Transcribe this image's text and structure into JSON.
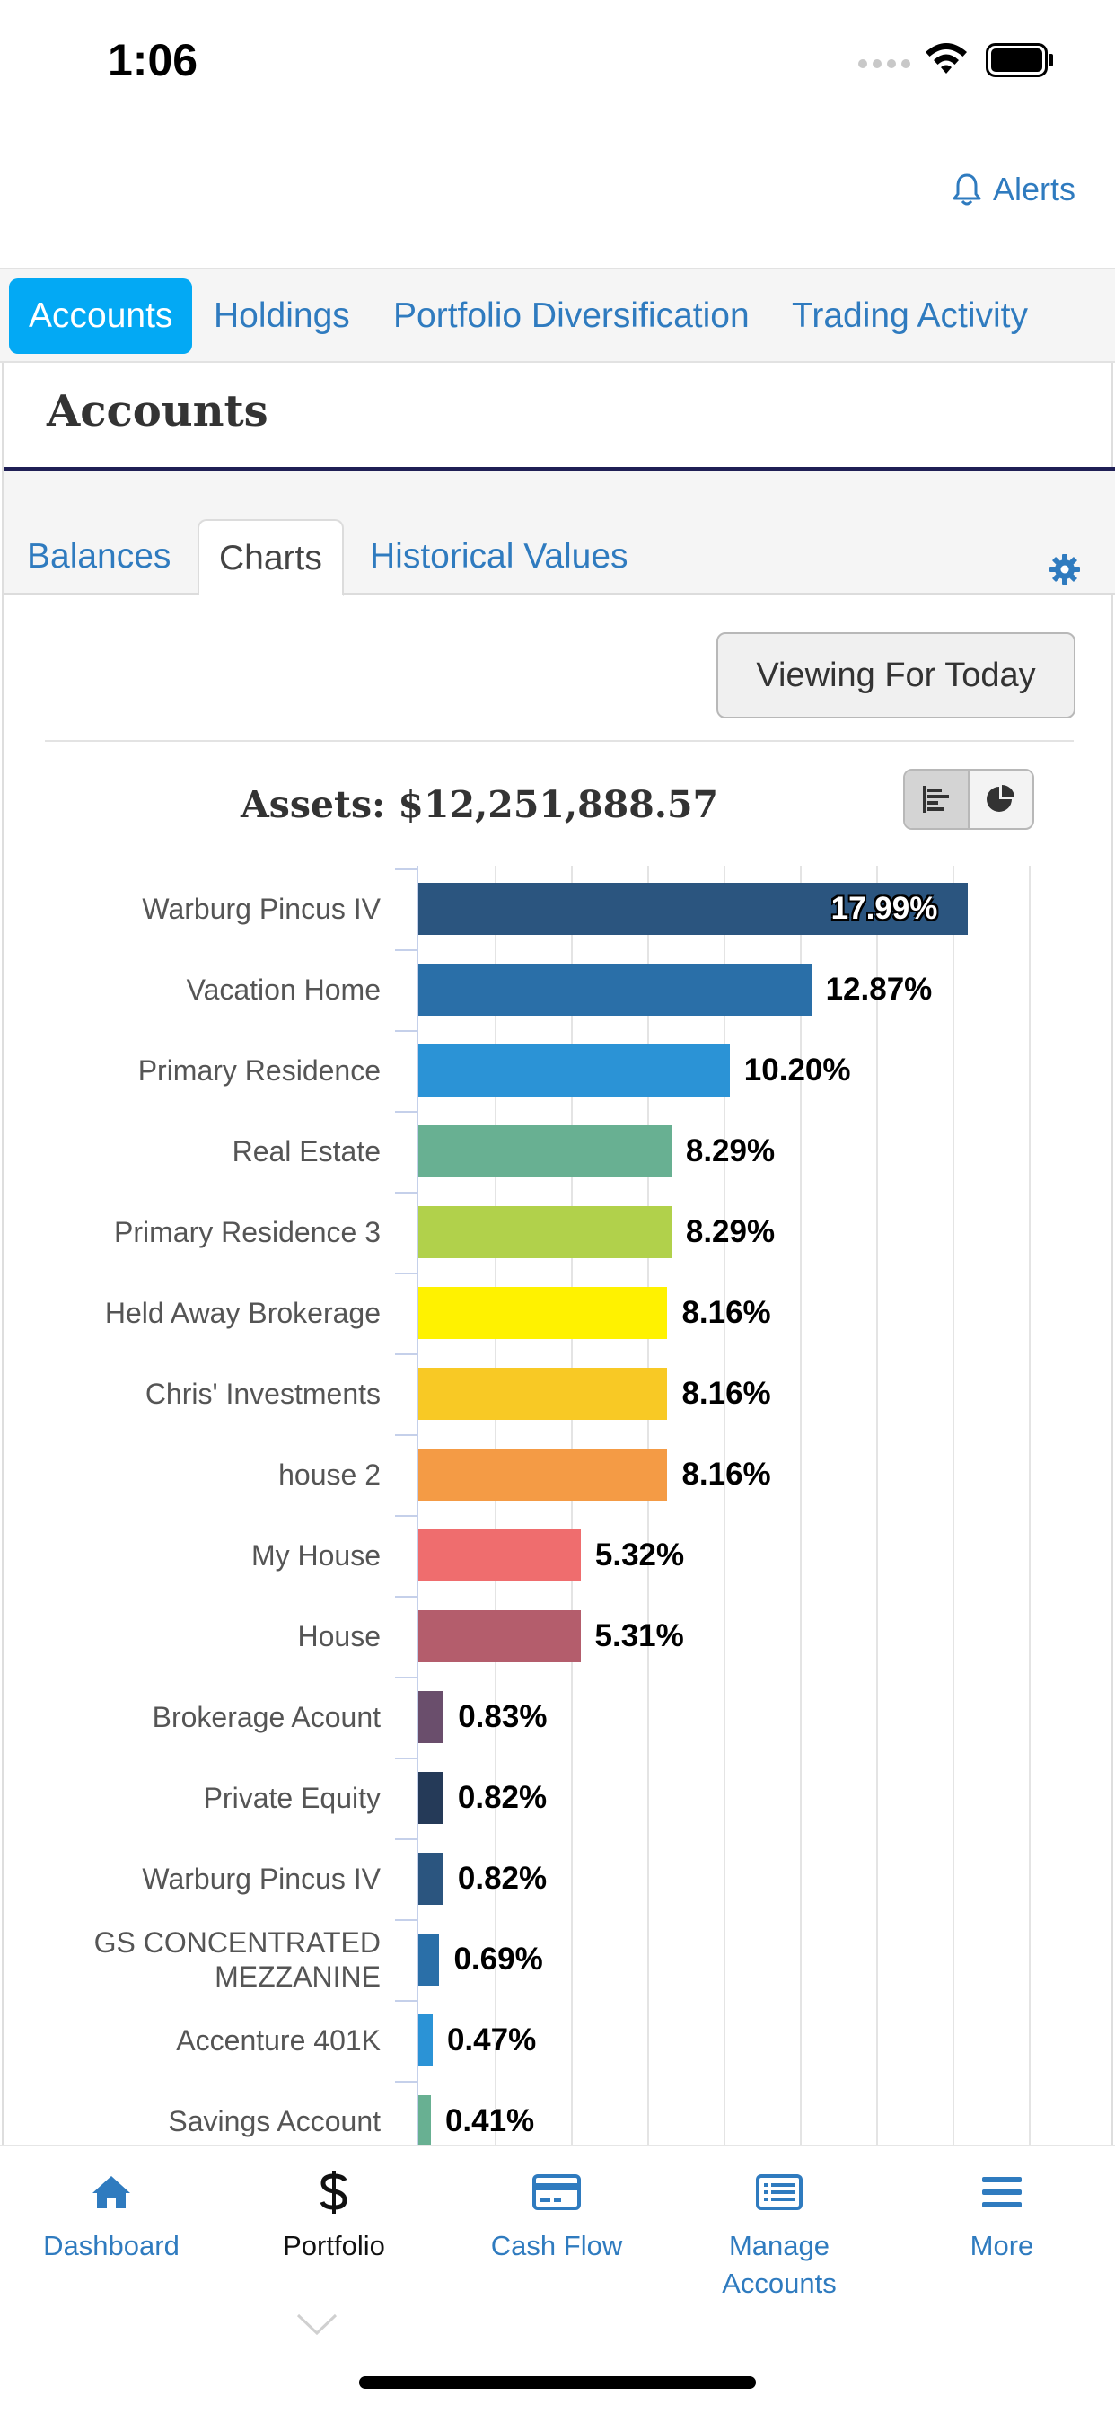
{
  "status_bar": {
    "time": "1:06"
  },
  "header": {
    "alerts_label": "Alerts"
  },
  "top_tabs": [
    {
      "label": "Accounts",
      "active": true
    },
    {
      "label": "Holdings",
      "active": false
    },
    {
      "label": "Portfolio Diversification",
      "active": false
    },
    {
      "label": "Trading Activity",
      "active": false
    }
  ],
  "page_title": "Accounts",
  "sub_tabs": [
    {
      "label": "Balances",
      "active": false
    },
    {
      "label": "Charts",
      "active": true
    },
    {
      "label": "Historical Values",
      "active": false
    }
  ],
  "viewing_button": "Viewing For Today",
  "chart_toggle": {
    "selected": "bar",
    "options": [
      "bar-chart-icon",
      "pie-chart-icon"
    ]
  },
  "chart_data": {
    "type": "bar",
    "orientation": "horizontal",
    "title": "Assets: $12,251,888.57",
    "categories": [
      "Warburg Pincus IV",
      "Vacation Home",
      "Primary Residence",
      "Real Estate",
      "Primary Residence 3",
      "Held Away Brokerage",
      "Chris' Investments",
      "house 2",
      "My House",
      "House",
      "Brokerage Acount",
      "Private Equity",
      "Warburg Pincus IV",
      "GS CONCENTRATED MEZZANINE",
      "Accenture 401K",
      "Savings Account"
    ],
    "values": [
      17.99,
      12.87,
      10.2,
      8.29,
      8.29,
      8.16,
      8.16,
      8.16,
      5.32,
      5.31,
      0.83,
      0.82,
      0.82,
      0.69,
      0.47,
      0.41
    ],
    "value_labels": [
      "17.99%",
      "12.87%",
      "10.20%",
      "8.29%",
      "8.29%",
      "8.16%",
      "8.16%",
      "8.16%",
      "5.32%",
      "5.31%",
      "0.83%",
      "0.82%",
      "0.82%",
      "0.69%",
      "0.47%",
      "0.41%"
    ],
    "colors": [
      "#2b557f",
      "#2a6fa8",
      "#2b93d6",
      "#68b092",
      "#b1d14b",
      "#fff200",
      "#f8c925",
      "#f49b45",
      "#ef6d6e",
      "#b45d6c",
      "#6a4e6c",
      "#253a58",
      "#2b557f",
      "#2a6fa8",
      "#2b93d6",
      "#68b092"
    ],
    "xlim": [
      0,
      20
    ],
    "grid": true
  },
  "bottom_nav": [
    {
      "label": "Dashboard",
      "icon": "home-icon",
      "active": false
    },
    {
      "label": "Portfolio",
      "icon": "dollar-icon",
      "active": true
    },
    {
      "label": "Cash Flow",
      "icon": "credit-card-icon",
      "active": false
    },
    {
      "label": "Manage Accounts",
      "icon": "list-card-icon",
      "active": false
    },
    {
      "label": "More",
      "icon": "hamburger-icon",
      "active": false
    }
  ]
}
